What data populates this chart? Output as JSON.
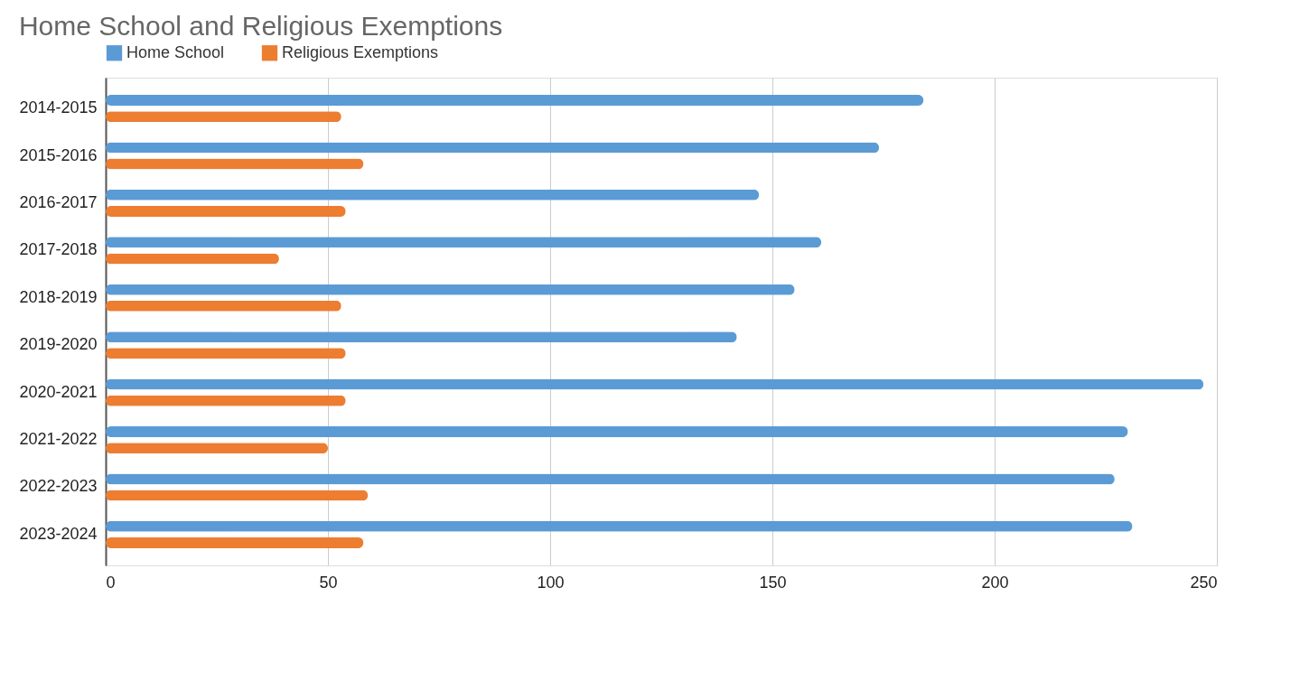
{
  "chart_data": {
    "type": "bar",
    "orientation": "horizontal",
    "title": "Home School and Religious Exemptions",
    "categories": [
      "2014-2015",
      "2015-2016",
      "2016-2017",
      "2017-2018",
      "2018-2019",
      "2019-2020",
      "2020-2021",
      "2021-2022",
      "2022-2023",
      "2023-2024"
    ],
    "series": [
      {
        "name": "Home School",
        "color": "#5b9bd5",
        "values": [
          184,
          174,
          147,
          161,
          155,
          142,
          247,
          230,
          227,
          231
        ]
      },
      {
        "name": "Religious Exemptions",
        "color": "#ed7d31",
        "values": [
          53,
          58,
          54,
          39,
          53,
          54,
          54,
          50,
          59,
          58
        ]
      }
    ],
    "xlim": [
      0,
      250
    ],
    "xticks": [
      0,
      50,
      100,
      150,
      200,
      250
    ],
    "grid": "x",
    "legend": "top"
  }
}
